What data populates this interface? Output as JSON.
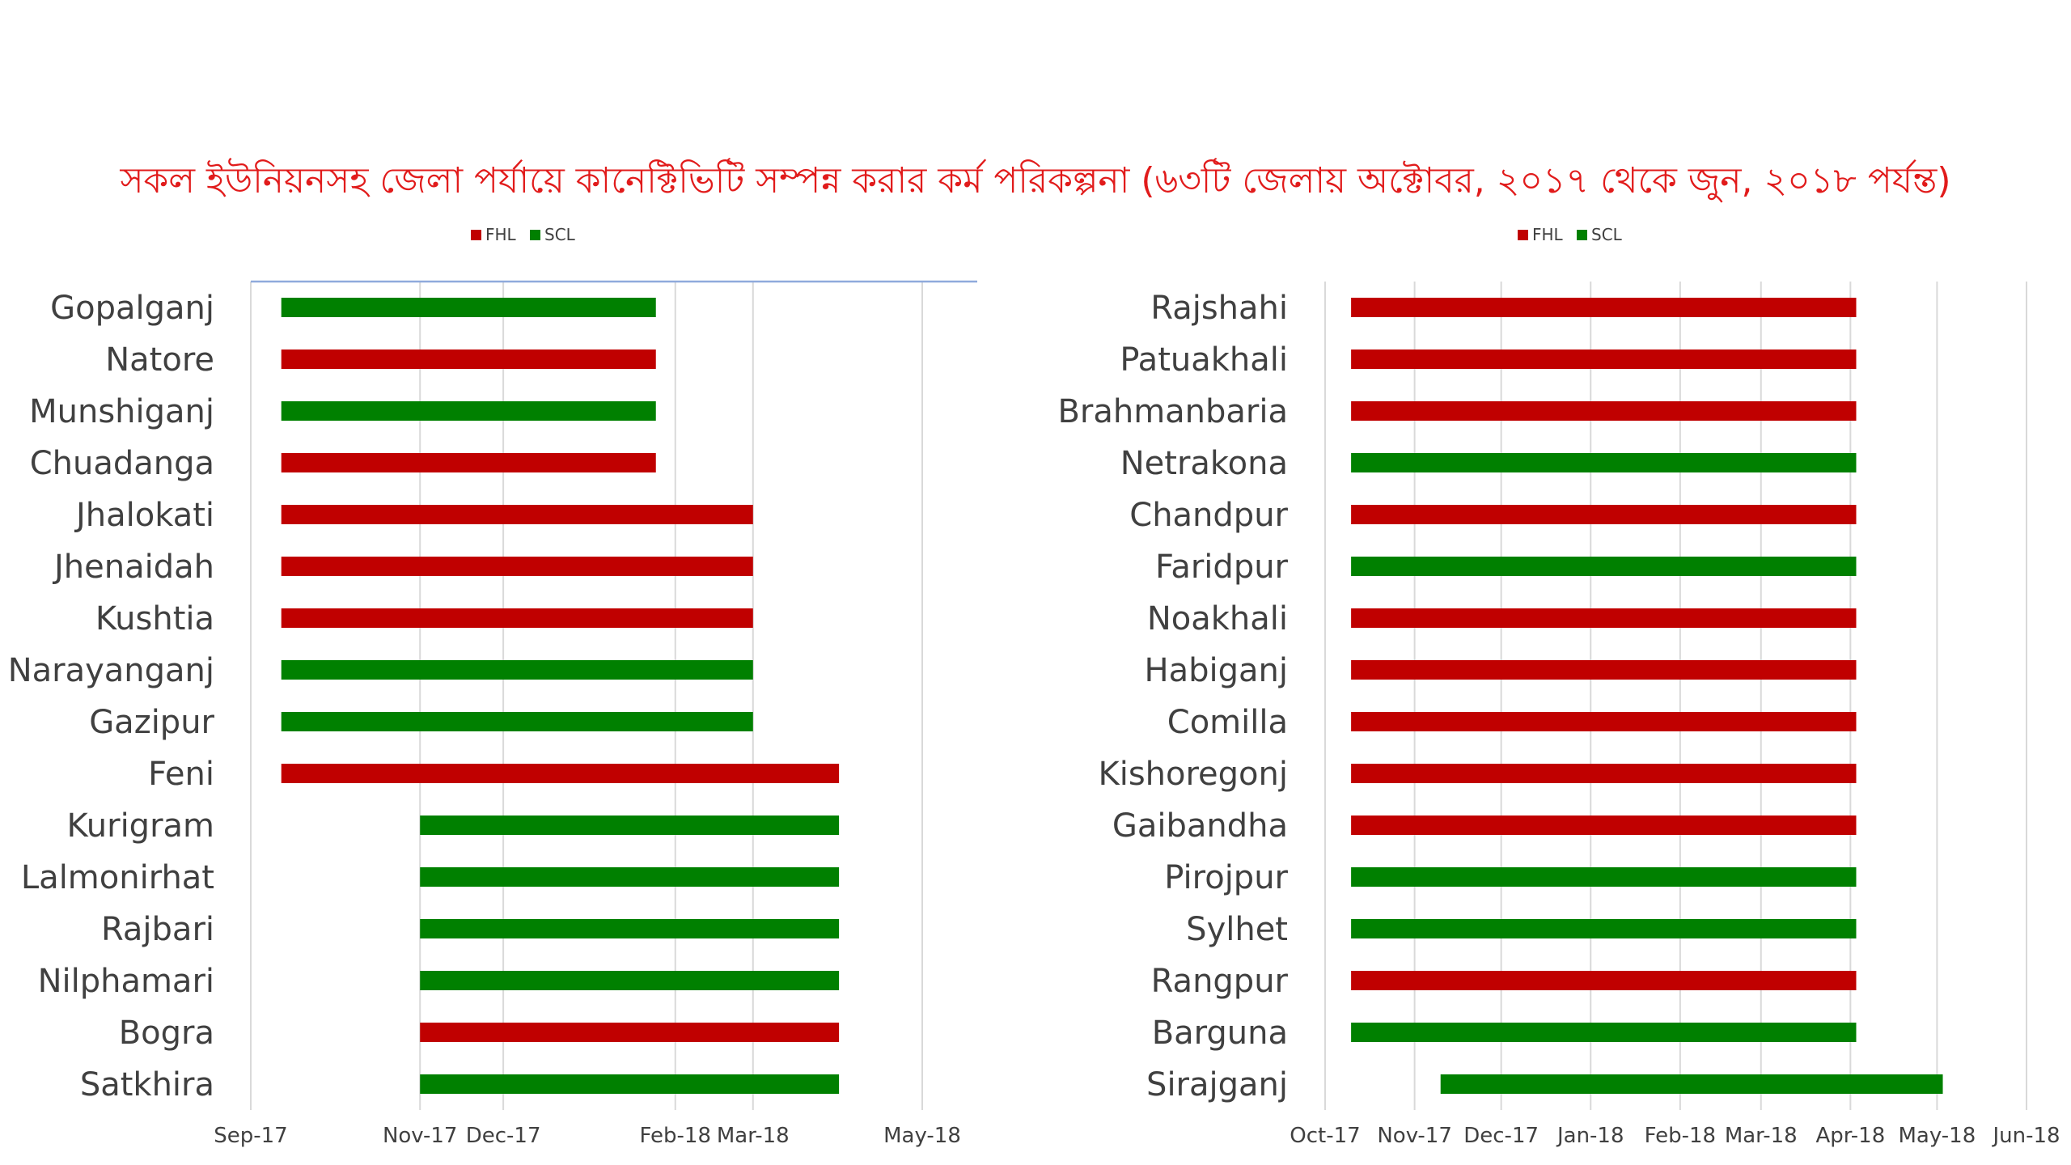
{
  "title": "সকল ইউনিয়নসহ জেলা পর্যায়ে কানেক্টিভিটি সম্পন্ন করার কর্ম পরিকল্পনা (৬৩টি জেলায় অক্টোবর, ২০১৭ থেকে জুন, ২০১৮ পর্যন্ত)",
  "colors": {
    "FHL": "#c00000",
    "SCL": "#008000",
    "grid": "#d9d9d9",
    "accent_line": "#8faadc"
  },
  "chart_data": [
    {
      "type": "bar",
      "orientation": "horizontal",
      "legend": [
        "FHL",
        "SCL"
      ],
      "legend_placement": "top",
      "grid": true,
      "x_ticks": [
        "Sep-17",
        "Nov-17",
        "Dec-17",
        "Feb-18",
        "Mar-18",
        "May-18"
      ],
      "x_tick_dates": [
        "2017-09-01",
        "2017-11-01",
        "2017-12-01",
        "2018-02-01",
        "2018-03-01",
        "2018-05-01"
      ],
      "xlim": [
        "2017-09-01",
        "2018-05-01"
      ],
      "bars": [
        {
          "label": "Gopalganj",
          "series": "SCL",
          "start": "2017-09-12",
          "end": "2018-01-25"
        },
        {
          "label": "Natore",
          "series": "FHL",
          "start": "2017-09-12",
          "end": "2018-01-25"
        },
        {
          "label": "Munshiganj",
          "series": "SCL",
          "start": "2017-09-12",
          "end": "2018-01-25"
        },
        {
          "label": "Chuadanga",
          "series": "FHL",
          "start": "2017-09-12",
          "end": "2018-01-25"
        },
        {
          "label": "Jhalokati",
          "series": "FHL",
          "start": "2017-09-12",
          "end": "2018-03-01"
        },
        {
          "label": "Jhenaidah",
          "series": "FHL",
          "start": "2017-09-12",
          "end": "2018-03-01"
        },
        {
          "label": "Kushtia",
          "series": "FHL",
          "start": "2017-09-12",
          "end": "2018-03-01"
        },
        {
          "label": "Narayanganj",
          "series": "SCL",
          "start": "2017-09-12",
          "end": "2018-03-01"
        },
        {
          "label": "Gazipur",
          "series": "SCL",
          "start": "2017-09-12",
          "end": "2018-03-01"
        },
        {
          "label": "Feni",
          "series": "FHL",
          "start": "2017-09-12",
          "end": "2018-04-01"
        },
        {
          "label": "Kurigram",
          "series": "SCL",
          "start": "2017-11-01",
          "end": "2018-04-01"
        },
        {
          "label": "Lalmonirhat",
          "series": "SCL",
          "start": "2017-11-01",
          "end": "2018-04-01"
        },
        {
          "label": "Rajbari",
          "series": "SCL",
          "start": "2017-11-01",
          "end": "2018-04-01"
        },
        {
          "label": "Nilphamari",
          "series": "SCL",
          "start": "2017-11-01",
          "end": "2018-04-01"
        },
        {
          "label": "Bogra",
          "series": "FHL",
          "start": "2017-11-01",
          "end": "2018-04-01"
        },
        {
          "label": "Satkhira",
          "series": "SCL",
          "start": "2017-11-01",
          "end": "2018-04-01"
        }
      ]
    },
    {
      "type": "bar",
      "orientation": "horizontal",
      "legend": [
        "FHL",
        "SCL"
      ],
      "legend_placement": "top",
      "grid": true,
      "x_ticks": [
        "Oct-17",
        "Nov-17",
        "Dec-17",
        "Jan-18",
        "Feb-18",
        "Mar-18",
        "Apr-18",
        "May-18",
        "Jun-18"
      ],
      "x_tick_dates": [
        "2017-10-01",
        "2017-11-01",
        "2017-12-01",
        "2018-01-01",
        "2018-02-01",
        "2018-03-01",
        "2018-04-01",
        "2018-05-01",
        "2018-06-01"
      ],
      "xlim": [
        "2017-10-01",
        "2018-06-01"
      ],
      "bars": [
        {
          "label": "Rajshahi",
          "series": "FHL",
          "start": "2017-10-10",
          "end": "2018-04-03"
        },
        {
          "label": "Patuakhali",
          "series": "FHL",
          "start": "2017-10-10",
          "end": "2018-04-03"
        },
        {
          "label": "Brahmanbaria",
          "series": "FHL",
          "start": "2017-10-10",
          "end": "2018-04-03"
        },
        {
          "label": "Netrakona",
          "series": "SCL",
          "start": "2017-10-10",
          "end": "2018-04-03"
        },
        {
          "label": "Chandpur",
          "series": "FHL",
          "start": "2017-10-10",
          "end": "2018-04-03"
        },
        {
          "label": "Faridpur",
          "series": "SCL",
          "start": "2017-10-10",
          "end": "2018-04-03"
        },
        {
          "label": "Noakhali",
          "series": "FHL",
          "start": "2017-10-10",
          "end": "2018-04-03"
        },
        {
          "label": "Habiganj",
          "series": "FHL",
          "start": "2017-10-10",
          "end": "2018-04-03"
        },
        {
          "label": "Comilla",
          "series": "FHL",
          "start": "2017-10-10",
          "end": "2018-04-03"
        },
        {
          "label": "Kishoregonj",
          "series": "FHL",
          "start": "2017-10-10",
          "end": "2018-04-03"
        },
        {
          "label": "Gaibandha",
          "series": "FHL",
          "start": "2017-10-10",
          "end": "2018-04-03"
        },
        {
          "label": "Pirojpur",
          "series": "SCL",
          "start": "2017-10-10",
          "end": "2018-04-03"
        },
        {
          "label": "Sylhet",
          "series": "SCL",
          "start": "2017-10-10",
          "end": "2018-04-03"
        },
        {
          "label": "Rangpur",
          "series": "FHL",
          "start": "2017-10-10",
          "end": "2018-04-03"
        },
        {
          "label": "Barguna",
          "series": "SCL",
          "start": "2017-10-10",
          "end": "2018-04-03"
        },
        {
          "label": "Sirajganj",
          "series": "SCL",
          "start": "2017-11-10",
          "end": "2018-05-03"
        }
      ]
    }
  ]
}
